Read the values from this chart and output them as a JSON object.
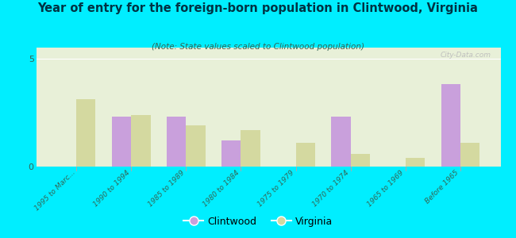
{
  "title": "Year of entry for the foreign-born population in Clintwood, Virginia",
  "subtitle": "(Note: State values scaled to Clintwood population)",
  "categories": [
    "1995 to Marc...",
    "1990 to 1994",
    "1985 to 1989",
    "1980 to 1984",
    "1975 to 1979",
    "1970 to 1974",
    "1965 to 1969",
    "Before 1965"
  ],
  "clintwood_values": [
    0,
    2.3,
    2.3,
    1.2,
    0,
    2.3,
    0,
    3.8
  ],
  "virginia_values": [
    3.1,
    2.4,
    1.9,
    1.7,
    1.1,
    0.6,
    0.4,
    1.1
  ],
  "clintwood_color": "#c9a0dc",
  "virginia_color": "#d4d9a0",
  "background_outer": "#00eeff",
  "background_plot_top": "#e8f0d8",
  "background_plot_bottom": "#f5f8ee",
  "ylim": [
    0,
    5.5
  ],
  "yticks": [
    0,
    5
  ],
  "bar_width": 0.35,
  "watermark": "City-Data.com",
  "legend_labels": [
    "Clintwood",
    "Virginia"
  ],
  "title_color": "#003344",
  "subtitle_color": "#336655",
  "tick_color": "#336655"
}
